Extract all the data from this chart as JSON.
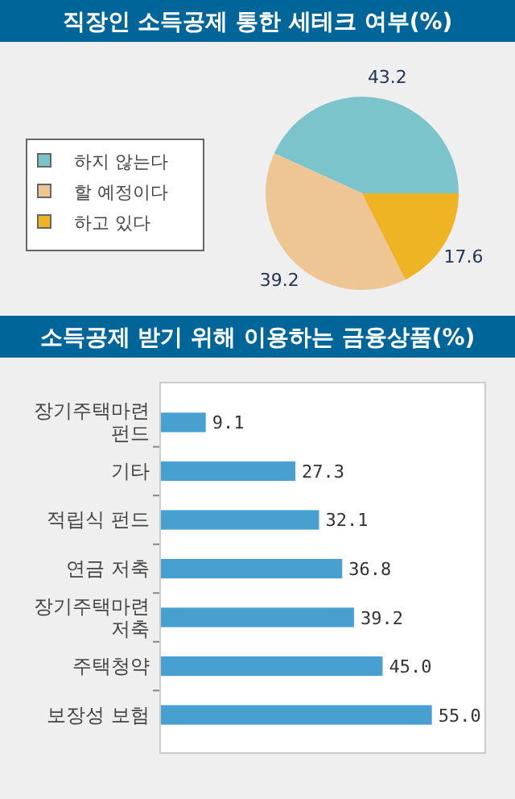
{
  "chart_data": [
    {
      "type": "pie",
      "title": "직장인 소득공제 통한 세테크 여부(%)",
      "categories": [
        "하지 않는다",
        "할 예정이다",
        "하고 있다"
      ],
      "values": [
        43.2,
        39.2,
        17.6
      ],
      "colors": [
        "#7cc4cc",
        "#eec693",
        "#eeb424"
      ],
      "data_labels": true,
      "legend": "left"
    },
    {
      "type": "bar",
      "orientation": "horizontal",
      "title": "소득공제 받기 위해 이용하는 금융상품(%)",
      "categories": [
        "장기주택마련 펀드",
        "기타",
        "적립식 펀드",
        "연금 저축",
        "장기주택마련 저축",
        "주택청약",
        "보장성 보험"
      ],
      "values": [
        9.1,
        27.3,
        32.1,
        36.8,
        39.2,
        45.0,
        55.0
      ],
      "value_labels": [
        "9.1",
        "27.3",
        "32.1",
        "36.8",
        "39.2",
        "45.0",
        "55.0"
      ],
      "color": "#48a0d0",
      "tick_labels": "y"
    }
  ]
}
